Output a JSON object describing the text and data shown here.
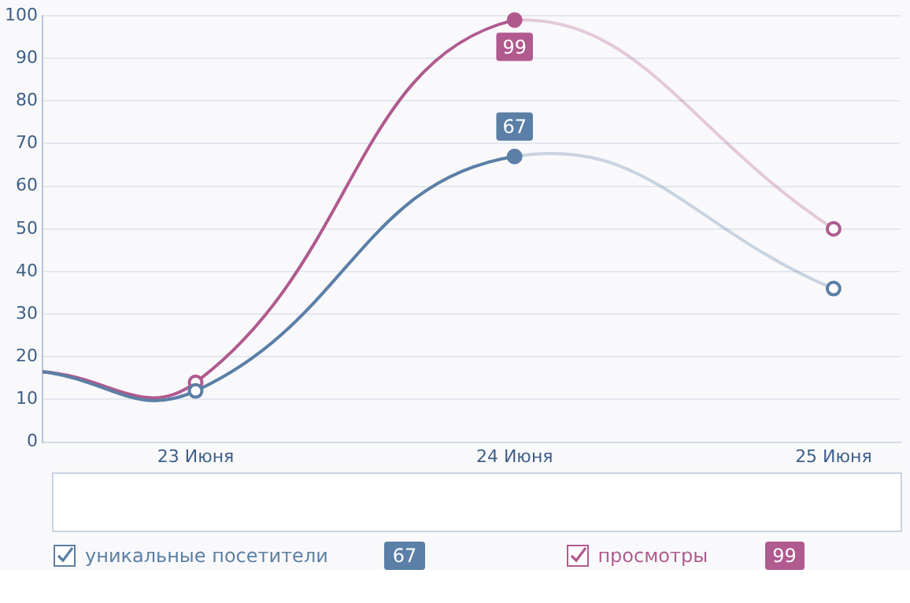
{
  "chart_data": {
    "type": "line",
    "x": [
      22.52,
      23,
      24,
      25
    ],
    "series": [
      {
        "name": "уникальные посетители",
        "color": "#5b7fa6",
        "values": [
          16.5,
          12,
          67,
          36
        ],
        "value_labels": [
          null,
          null,
          "67",
          null
        ]
      },
      {
        "name": "просмотры",
        "color": "#b05a8f",
        "values": [
          16.5,
          14,
          99,
          50
        ],
        "value_labels": [
          null,
          null,
          "99",
          null
        ]
      }
    ],
    "xlim": [
      22.52,
      25.21
    ],
    "xticks": [
      {
        "value": 23,
        "label": "23 Июня"
      },
      {
        "value": 24,
        "label": "24 Июня"
      },
      {
        "value": 25,
        "label": "25 Июня"
      }
    ],
    "ylim": [
      0,
      100
    ],
    "yticks": [
      0,
      10,
      20,
      30,
      40,
      50,
      60,
      70,
      80,
      90,
      100
    ],
    "grid": "y",
    "legend": "bottom",
    "marker": "circle",
    "line_style": "solid"
  }
}
